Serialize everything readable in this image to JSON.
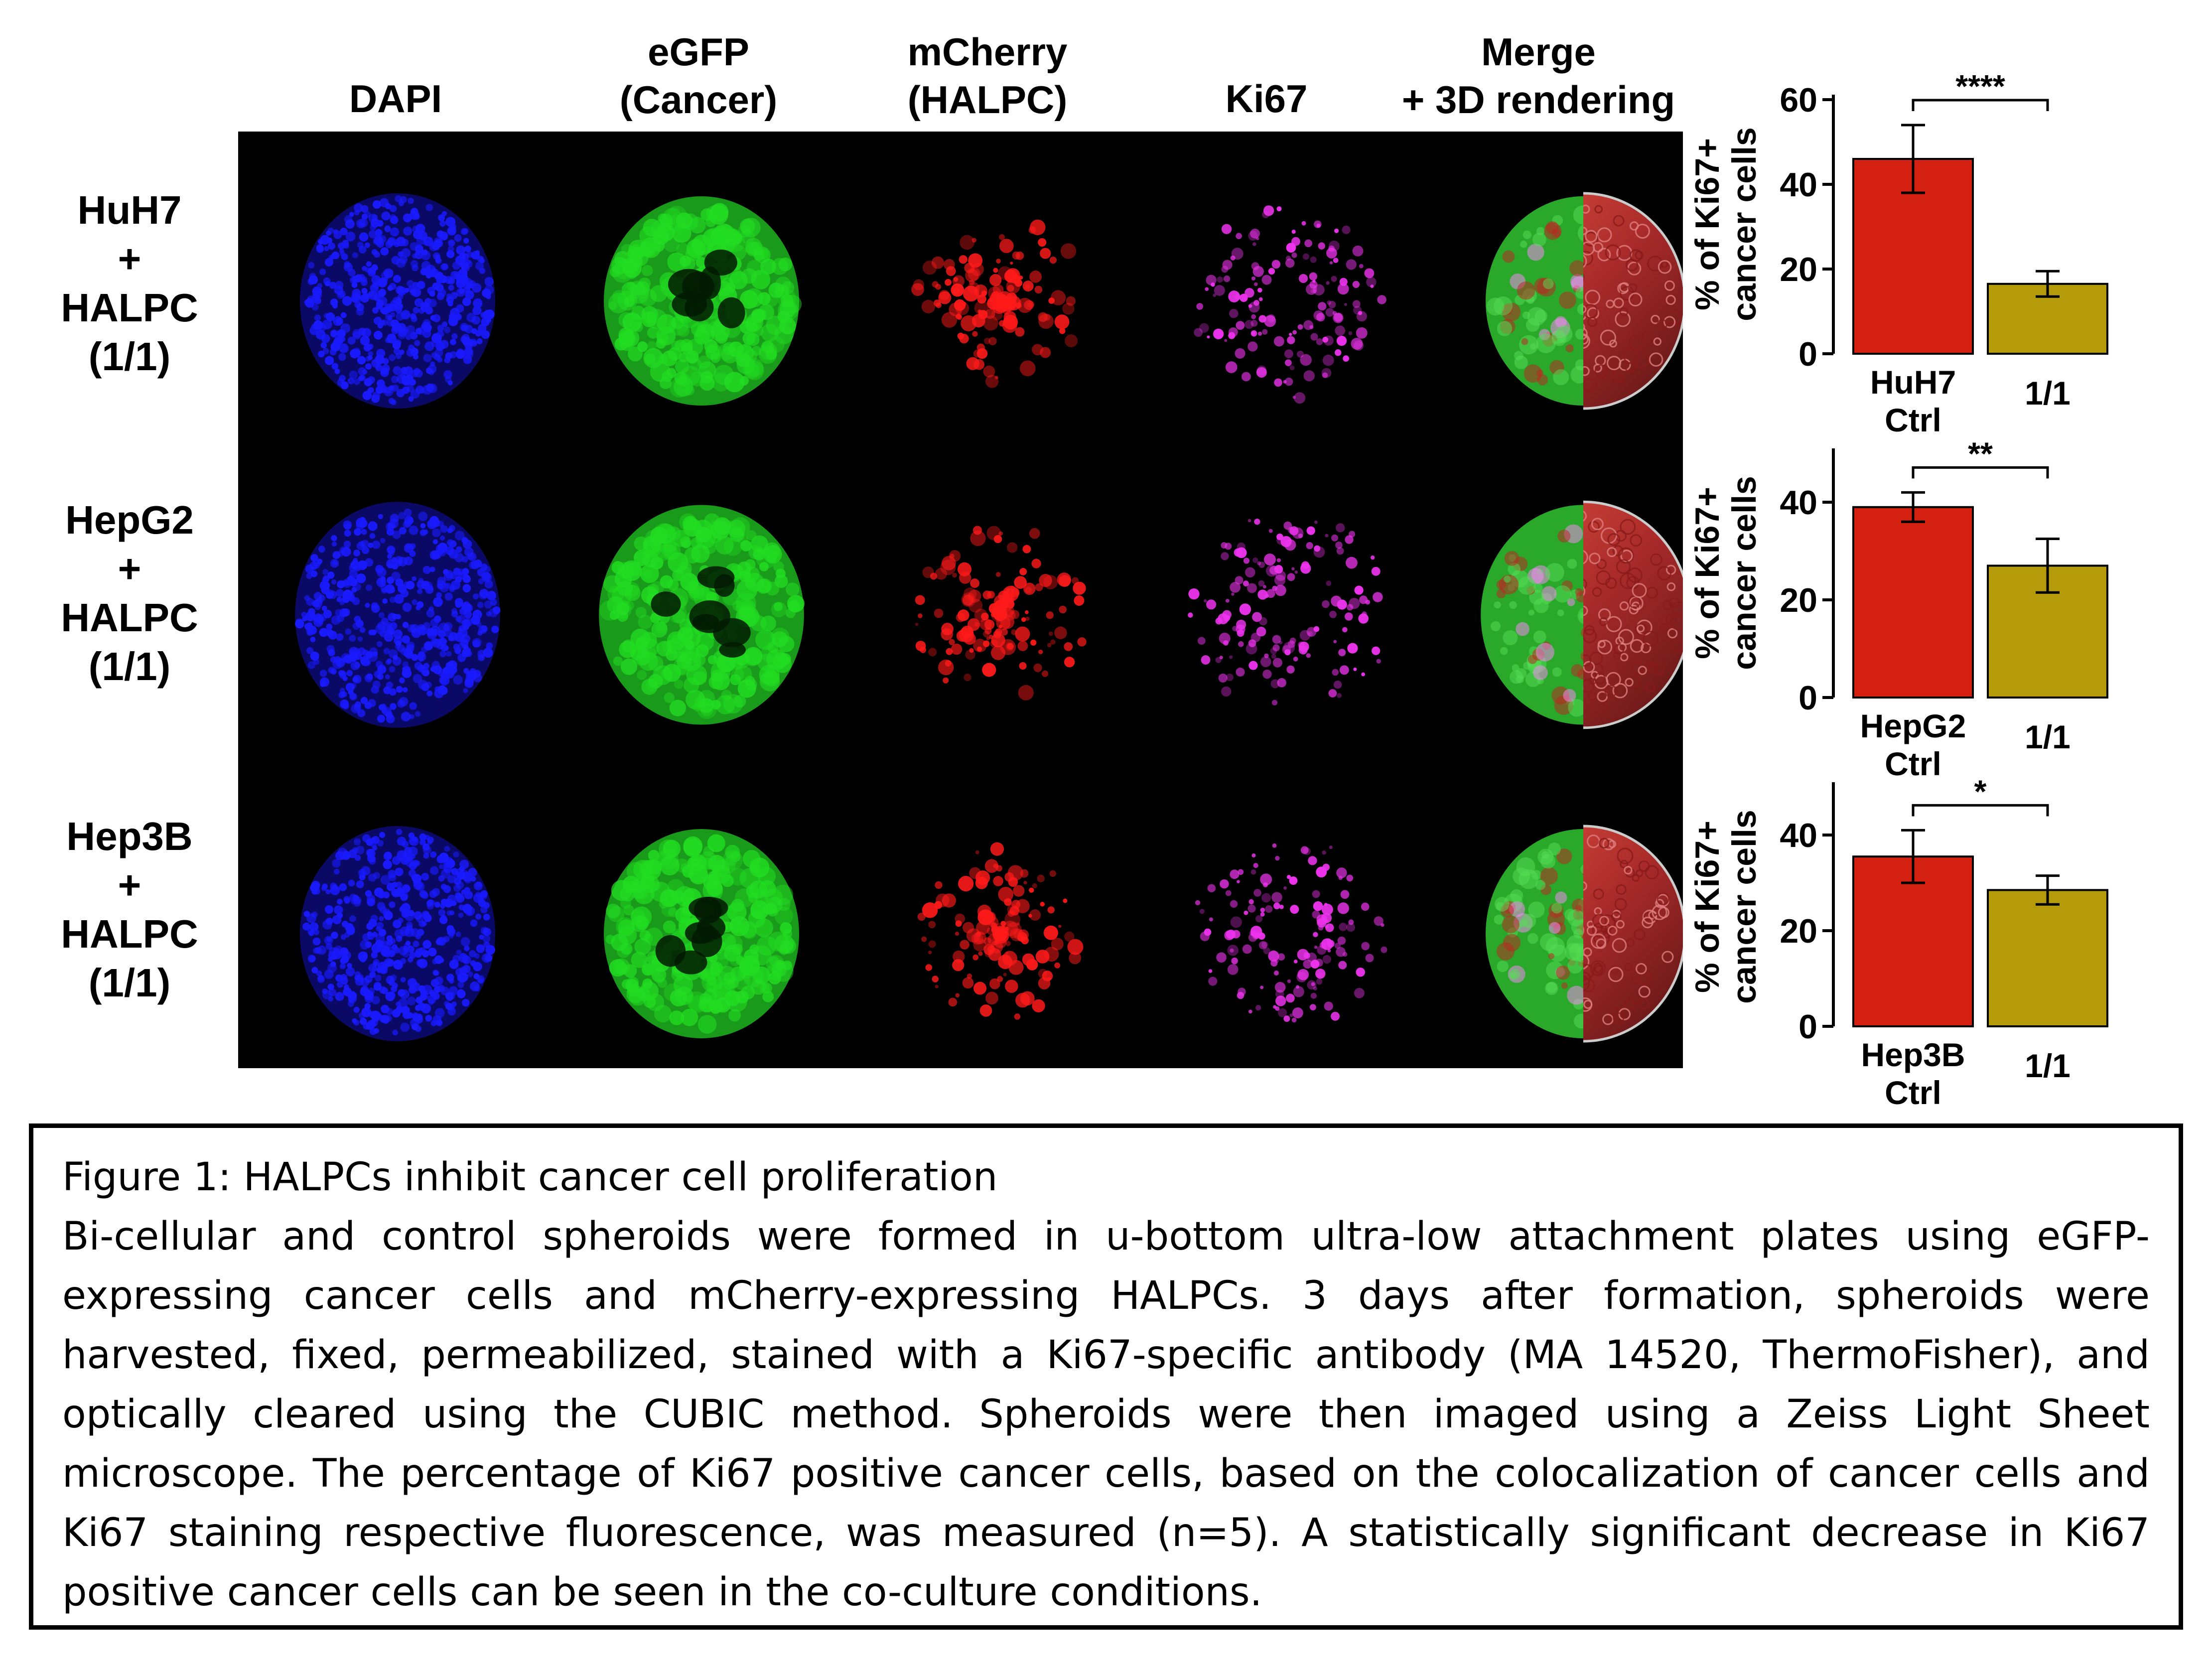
{
  "columns": [
    "DAPI",
    "eGFP\n(Cancer)",
    "mCherry\n(HALPC)",
    "Ki67",
    "Merge\n+ 3D rendering"
  ],
  "rows": [
    {
      "label": "HuH7\n+\nHALPC\n(1/1)"
    },
    {
      "label": "HepG2\n+\nHALPC\n(1/1)"
    },
    {
      "label": "Hep3B\n+\nHALPC\n(1/1)"
    }
  ],
  "colors": {
    "dapi": "#1a1aff",
    "egfp": "#22dd22",
    "mcherry": "#ff1a1a",
    "ki67": "#ee33ee",
    "ctrl_bar": "#d42011",
    "coculture_bar": "#b59b0a"
  },
  "chart_data": [
    {
      "type": "bar",
      "ylabel": "% of Ki67+\ncancer cells",
      "categories": [
        "HuH7\nCtrl",
        "1/1"
      ],
      "values": [
        46,
        16.5
      ],
      "errors": [
        8,
        3
      ],
      "ylim": [
        0,
        60
      ],
      "yticks": [
        0,
        20,
        40,
        60
      ],
      "significance": "****"
    },
    {
      "type": "bar",
      "ylabel": "% of Ki67+\ncancer cells",
      "categories": [
        "HepG2\nCtrl",
        "1/1"
      ],
      "values": [
        39,
        27
      ],
      "errors": [
        3,
        5.5
      ],
      "ylim": [
        0,
        50
      ],
      "yticks": [
        0,
        20,
        40
      ],
      "significance": "**"
    },
    {
      "type": "bar",
      "ylabel": "% of Ki67+\ncancer cells",
      "categories": [
        "Hep3B\nCtrl",
        "1/1"
      ],
      "values": [
        35.5,
        28.5
      ],
      "errors": [
        5.5,
        3
      ],
      "ylim": [
        0,
        50
      ],
      "yticks": [
        0,
        20,
        40
      ],
      "significance": "*"
    }
  ],
  "caption": {
    "title": "Figure 1: HALPCs inhibit cancer cell proliferation",
    "body": "Bi-cellular and control spheroids were formed in u-bottom ultra-low attachment plates using eGFP-expressing cancer cells and mCherry-expressing HALPCs. 3 days after formation, spheroids were harvested, fixed, permeabilized, stained with a Ki67-specific antibody (MA 14520, ThermoFisher), and optically cleared using the CUBIC method. Spheroids were then imaged using a Zeiss Light Sheet microscope. The percentage of Ki67 positive cancer cells, based on the colocalization of cancer cells and Ki67 staining respective fluorescence, was measured (n=5). A statistically significant decrease in Ki67 positive cancer cells can be seen in the co-culture conditions."
  }
}
